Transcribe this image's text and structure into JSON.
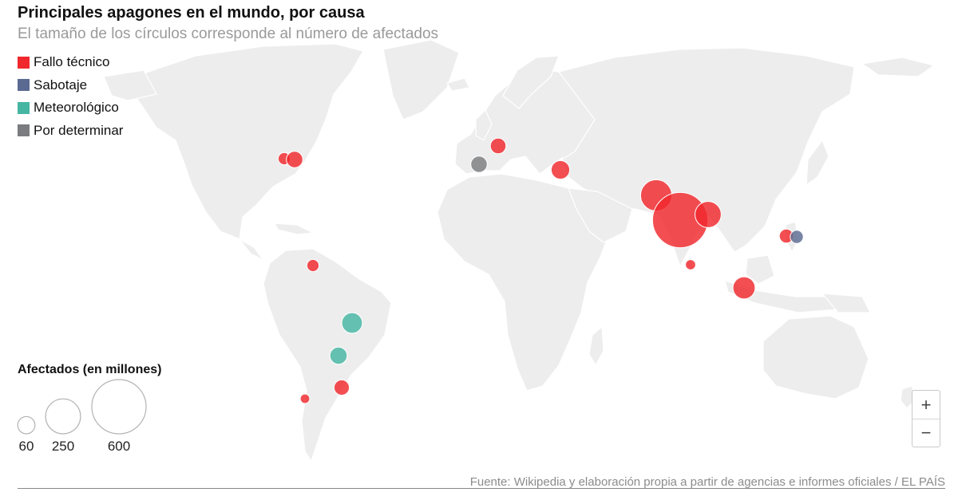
{
  "header": {
    "title": "Principales apagones en el mundo, por causa",
    "subtitle": "El tamaño de los círculos corresponde al número de afectados"
  },
  "legend": {
    "items": [
      {
        "label": "Fallo técnico",
        "color": "#f0282d"
      },
      {
        "label": "Sabotaje",
        "color": "#5a6a91"
      },
      {
        "label": "Meteorológico",
        "color": "#46b6a2"
      },
      {
        "label": "Por determinar",
        "color": "#7a7c7f"
      }
    ]
  },
  "size_legend": {
    "title": "Afectados (en millones)",
    "items": [
      {
        "label": "60",
        "value": 60
      },
      {
        "label": "250",
        "value": 250
      },
      {
        "label": "600",
        "value": 600
      }
    ]
  },
  "zoom": {
    "in_label": "+",
    "out_label": "−"
  },
  "source": "Fuente: Wikipedia y elaboración propia a partir de agencias e informes oficiales / EL PAÍS",
  "colors": {
    "land": "#ededed",
    "border": "#ffffff",
    "circle_stroke": "#ffffff"
  },
  "chart_data": {
    "type": "bubble-map",
    "outages": [
      {
        "region": "Noreste de EE UU",
        "cause": "Fallo técnico",
        "affected": 30
      },
      {
        "region": "Noreste de EE UU / Canadá",
        "cause": "Fallo técnico",
        "affected": 55
      },
      {
        "region": "Europa occidental",
        "cause": "Fallo técnico",
        "affected": 50
      },
      {
        "region": "Península ibérica",
        "cause": "Por determinar",
        "affected": 55
      },
      {
        "region": "Turquía",
        "cause": "Fallo técnico",
        "affected": 70
      },
      {
        "region": "Pakistán",
        "cause": "Fallo técnico",
        "affected": 200
      },
      {
        "region": "India",
        "cause": "Fallo técnico",
        "affected": 620
      },
      {
        "region": "Bangladés",
        "cause": "Fallo técnico",
        "affected": 140
      },
      {
        "region": "Sri Lanka",
        "cause": "Fallo técnico",
        "affected": 21
      },
      {
        "region": "Indonesia (Java)",
        "cause": "Fallo técnico",
        "affected": 100
      },
      {
        "region": "Filipinas",
        "cause": "Fallo técnico",
        "affected": 40
      },
      {
        "region": "Filipinas (Luzón)",
        "cause": "Sabotaje",
        "affected": 35
      },
      {
        "region": "Venezuela",
        "cause": "Fallo técnico",
        "affected": 30
      },
      {
        "region": "Brasil",
        "cause": "Meteorológico",
        "affected": 87
      },
      {
        "region": "Brasil / Paraguay",
        "cause": "Meteorológico",
        "affected": 60
      },
      {
        "region": "Argentina / Uruguay",
        "cause": "Fallo técnico",
        "affected": 48
      },
      {
        "region": "Chile",
        "cause": "Fallo técnico",
        "affected": 18
      }
    ]
  }
}
